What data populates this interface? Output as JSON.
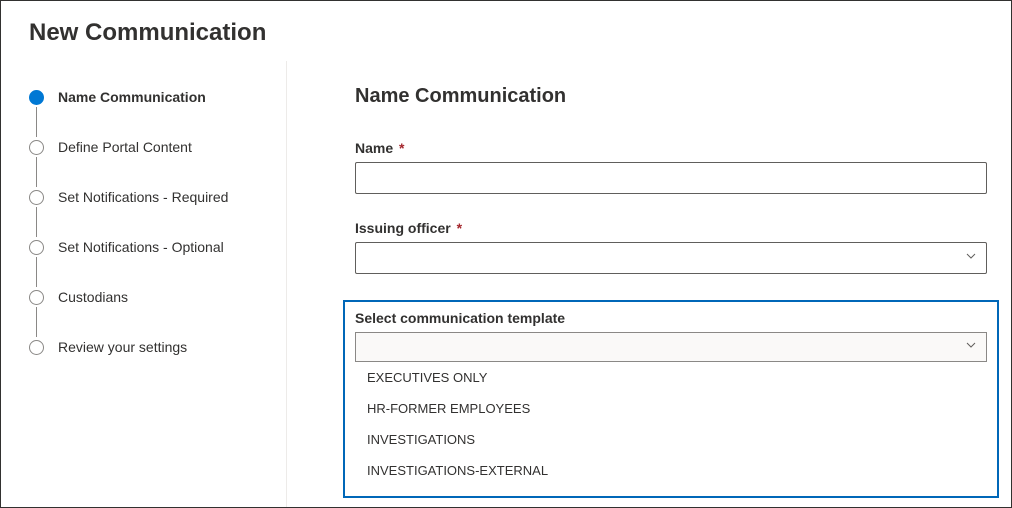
{
  "page": {
    "title": "New Communication"
  },
  "steps": [
    {
      "label": "Name Communication",
      "active": true
    },
    {
      "label": "Define Portal Content",
      "active": false
    },
    {
      "label": "Set Notifications - Required",
      "active": false
    },
    {
      "label": "Set Notifications - Optional",
      "active": false
    },
    {
      "label": "Custodians",
      "active": false
    },
    {
      "label": "Review your settings",
      "active": false
    }
  ],
  "form": {
    "section_title": "Name Communication",
    "name": {
      "label": "Name",
      "required_mark": "*",
      "value": ""
    },
    "issuing_officer": {
      "label": "Issuing officer",
      "required_mark": "*",
      "value": ""
    },
    "template": {
      "label": "Select communication template",
      "value": "",
      "options": [
        "EXECUTIVES ONLY",
        "HR-FORMER EMPLOYEES",
        "INVESTIGATIONS",
        "INVESTIGATIONS-EXTERNAL"
      ]
    }
  },
  "colors": {
    "accent": "#0078d4",
    "highlight_border": "#0067b8",
    "text": "#323130",
    "required": "#a4262c",
    "border": "#605e5c"
  }
}
